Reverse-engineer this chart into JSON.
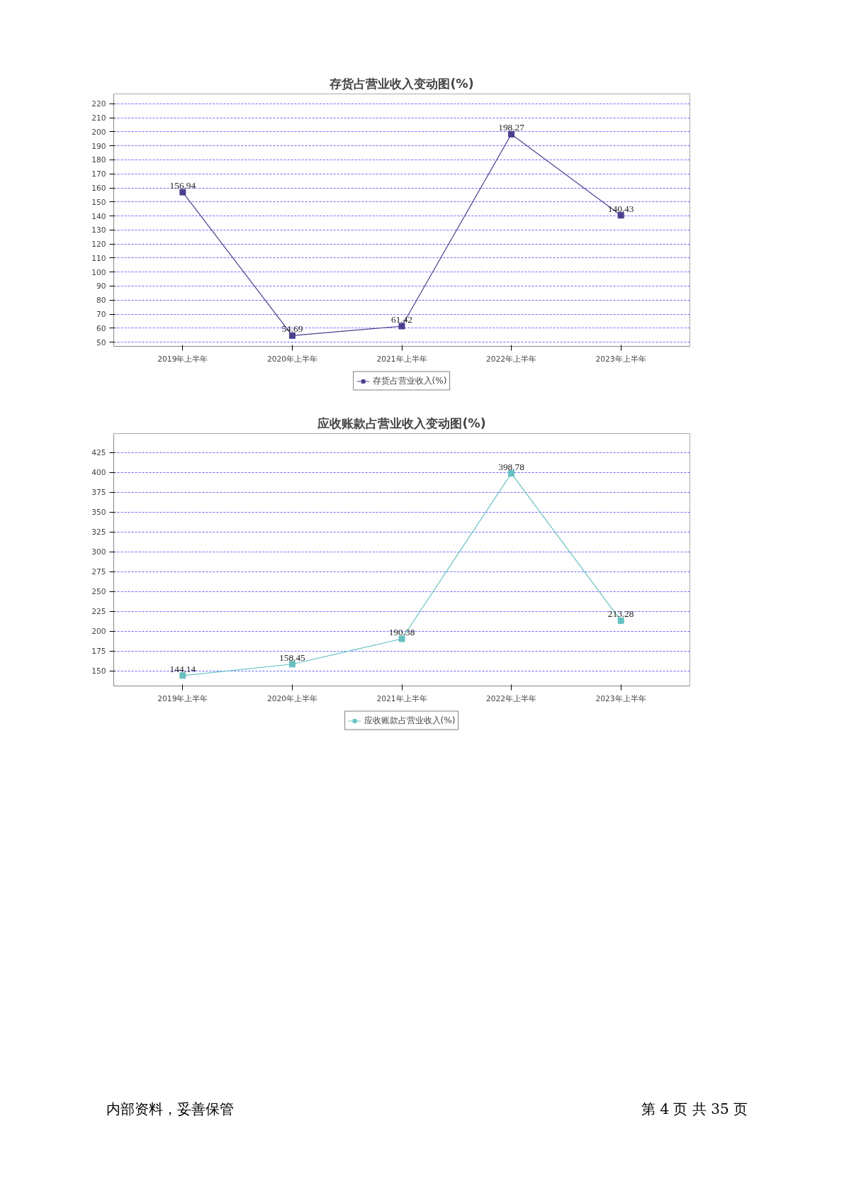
{
  "chart_data": [
    {
      "type": "line",
      "title": "存货占营业收入变动图(%)",
      "categories": [
        "2019年上半年",
        "2020年上半年",
        "2021年上半年",
        "2022年上半年",
        "2023年上半年"
      ],
      "series": [
        {
          "name": "存货占营业收入(%)",
          "color": "#4b3f8f",
          "values": [
            156.94,
            54.69,
            61.42,
            198.27,
            140.43
          ]
        }
      ],
      "ylim": [
        47,
        227
      ],
      "yticks": [
        50,
        60,
        70,
        80,
        90,
        100,
        110,
        120,
        130,
        140,
        150,
        160,
        170,
        180,
        190,
        200,
        210,
        220
      ],
      "grid": "y",
      "legend": "bottom",
      "marker": "square",
      "line_style": "solid",
      "data_labels": true
    },
    {
      "type": "line",
      "title": "应收账款占营业收入变动图(%)",
      "categories": [
        "2019年上半年",
        "2020年上半年",
        "2021年上半年",
        "2022年上半年",
        "2023年上半年"
      ],
      "series": [
        {
          "name": "应收账款占营业收入(%)",
          "color": "#66c0c0",
          "values": [
            144.14,
            158.45,
            190.38,
            398.78,
            213.28
          ]
        }
      ],
      "ylim": [
        131,
        449
      ],
      "yticks": [
        150,
        175,
        200,
        225,
        250,
        275,
        300,
        325,
        350,
        375,
        400,
        425
      ],
      "grid": "y",
      "legend": "bottom",
      "marker": "square",
      "line_style": "solid",
      "data_labels": true,
      "annotations": [
        "内部资料，妥善保管",
        "第 4 页  共 35 页"
      ]
    }
  ]
}
